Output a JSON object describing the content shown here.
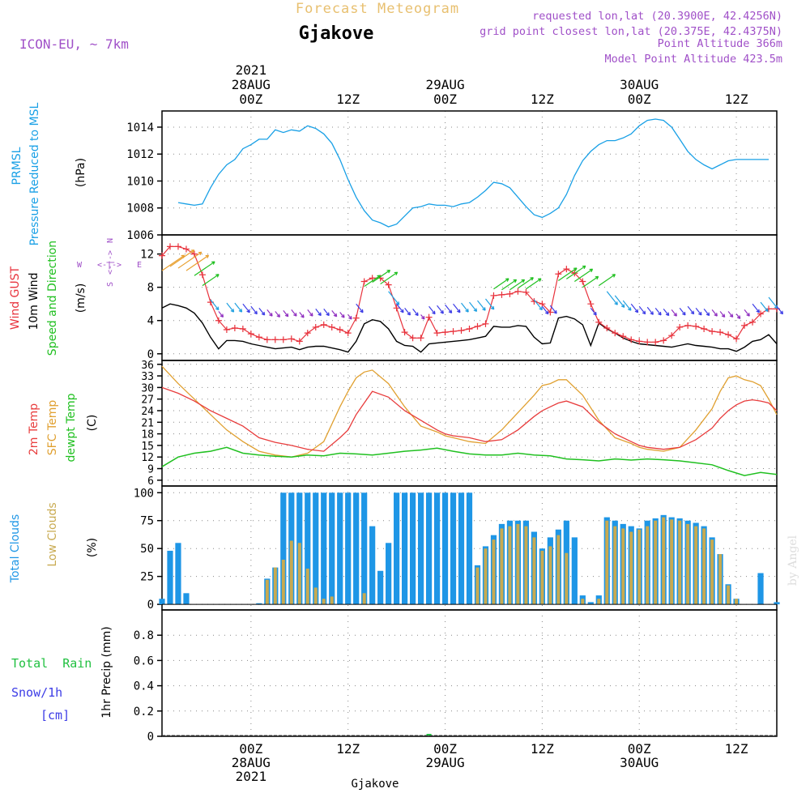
{
  "header": {
    "product": "Forecast Meteogram",
    "location": "Gjakove",
    "model": "ICON-EU, ~ 7km",
    "requested": "requested lon,lat (20.3900E, 42.4256N)",
    "grid_point": "grid point closest lon,lat (20.375E, 42.4375N)",
    "point_altitude": "Point Altitude 366m",
    "model_altitude": "Model Point Altitude 423.5m",
    "footer_location": "Gjakove",
    "credit": "by Angel"
  },
  "time_axis": {
    "top_labels": [
      {
        "lines": [
          "2021",
          "28AUG",
          "00Z"
        ],
        "hour": 0
      },
      {
        "lines": [
          "12Z"
        ],
        "hour": 12
      },
      {
        "lines": [
          "29AUG",
          "00Z"
        ],
        "hour": 24
      },
      {
        "lines": [
          "12Z"
        ],
        "hour": 36
      },
      {
        "lines": [
          "30AUG",
          "00Z"
        ],
        "hour": 48
      },
      {
        "lines": [
          "12Z"
        ],
        "hour": 60
      }
    ],
    "bottom_labels": [
      {
        "lines": [
          "00Z",
          "28AUG",
          "2021"
        ],
        "hour": 0
      },
      {
        "lines": [
          "12Z"
        ],
        "hour": 12
      },
      {
        "lines": [
          "00Z",
          "29AUG"
        ],
        "hour": 24
      },
      {
        "lines": [
          "12Z"
        ],
        "hour": 36
      },
      {
        "lines": [
          "00Z",
          "30AUG"
        ],
        "hour": 48
      },
      {
        "lines": [
          "12Z"
        ],
        "hour": 60
      }
    ],
    "range_hours": [
      -11,
      65
    ]
  },
  "panels": {
    "pressure": {
      "label1": "PRMSL",
      "label2": "Pressure Reduced to MSL",
      "unit": "(hPa)",
      "ticks": [
        1006,
        1008,
        1010,
        1012,
        1014
      ],
      "ylim": [
        1006,
        1015.2
      ]
    },
    "wind": {
      "label_gust": "Wind GUST",
      "label_wind": "10m Wind",
      "label_dir": "Speed and Direction",
      "unit": "(m/s)",
      "ticks": [
        0,
        4,
        8,
        12
      ],
      "ylim": [
        -0.8,
        14.3
      ],
      "compass": {
        "n": "N",
        "s": "S",
        "w": "W",
        "e": "E",
        "arrow_lr": "<-|->"
      }
    },
    "temp": {
      "label_t2m": "2m Temp",
      "label_sfc": "SFC Temp",
      "label_dew": "dewpt Temp",
      "unit": "(C)",
      "ticks": [
        6,
        9,
        12,
        15,
        18,
        21,
        24,
        27,
        30,
        33,
        36
      ],
      "ylim": [
        4.5,
        37
      ]
    },
    "clouds": {
      "label_total": "Total Clouds",
      "label_low": "Low Clouds",
      "unit": "(%)",
      "ticks": [
        0,
        25,
        50,
        75,
        100
      ],
      "ylim": [
        -5,
        106
      ]
    },
    "precip": {
      "label_rain": "Total  Rain",
      "label_snow": "Snow/1h",
      "label_cm": "[cm]",
      "unit": "1hr Precip (mm)",
      "ticks": [
        "0",
        "0.2",
        "0.4",
        "0.6",
        "0.8"
      ],
      "ylim": [
        0,
        1.0
      ]
    }
  },
  "colors": {
    "pressure": "#19a0e6",
    "gust": "#e8323c",
    "wind": "#000000",
    "t2m": "#e83c3c",
    "sfc": "#e0a030",
    "dew": "#20c020",
    "total_clouds": "#1e96e6",
    "low_clouds": "#c8aa50",
    "rain": "#20c040",
    "snow": "#3c3ce6",
    "header": "#a050c8",
    "title_faint": "#e8c070"
  },
  "chart_data": {
    "type": "line",
    "x_unit": "hours from 2021-08-28 00Z",
    "pressure_hpa": {
      "x": [
        -9,
        -8,
        -7,
        -6,
        -5,
        -4,
        -3,
        -2,
        -1,
        0,
        1,
        2,
        3,
        4,
        5,
        6,
        7,
        8,
        9,
        10,
        11,
        12,
        13,
        14,
        15,
        16,
        17,
        18,
        19,
        20,
        21,
        22,
        23,
        24,
        25,
        26,
        27,
        28,
        29,
        30,
        31,
        32,
        33,
        34,
        35,
        36,
        37,
        38,
        39,
        40,
        41,
        42,
        43,
        44,
        45,
        46,
        47,
        48,
        49,
        50,
        51,
        52,
        53,
        54,
        55,
        56,
        57,
        58,
        59,
        60,
        61,
        62,
        63,
        64
      ],
      "y": [
        1008.4,
        1008.3,
        1008.2,
        1008.3,
        1009.5,
        1010.5,
        1011.2,
        1011.6,
        1012.4,
        1012.7,
        1013.1,
        1013.1,
        1013.8,
        1013.6,
        1013.8,
        1013.7,
        1014.1,
        1013.9,
        1013.5,
        1012.8,
        1011.6,
        1010.1,
        1008.8,
        1007.8,
        1007.1,
        1006.9,
        1006.6,
        1006.8,
        1007.4,
        1008.0,
        1008.1,
        1008.3,
        1008.2,
        1008.2,
        1008.1,
        1008.3,
        1008.4,
        1008.8,
        1009.3,
        1009.9,
        1009.8,
        1009.5,
        1008.8,
        1008.1,
        1007.5,
        1007.3,
        1007.6,
        1008.0,
        1009.0,
        1010.4,
        1011.5,
        1012.2,
        1012.7,
        1013.0,
        1013.0,
        1013.2,
        1013.5,
        1014.1,
        1014.5,
        1014.6,
        1014.5,
        1014.0,
        1013.1,
        1012.2,
        1011.6,
        1011.2,
        1010.9,
        1011.2,
        1011.5,
        1011.6,
        1011.6,
        1011.6,
        1011.6,
        1011.6
      ]
    },
    "gust_ms": {
      "x": [
        -11,
        -10,
        -9,
        -8,
        -7,
        -6,
        -5,
        -4,
        -3,
        -2,
        -1,
        0,
        1,
        2,
        3,
        4,
        5,
        6,
        7,
        8,
        9,
        10,
        11,
        12,
        13,
        14,
        15,
        16,
        17,
        18,
        19,
        20,
        21,
        22,
        23,
        24,
        25,
        26,
        27,
        28,
        29,
        30,
        31,
        32,
        33,
        34,
        35,
        36,
        37,
        38,
        39,
        40,
        41,
        42,
        43,
        44,
        45,
        46,
        47,
        48,
        49,
        50,
        51,
        52,
        53,
        54,
        55,
        56,
        57,
        58,
        59,
        60,
        61,
        62,
        63,
        64,
        65
      ],
      "y": [
        11.8,
        12.9,
        12.9,
        12.6,
        12.0,
        9.5,
        6.2,
        4.0,
        2.9,
        3.1,
        3.0,
        2.4,
        2.0,
        1.7,
        1.7,
        1.7,
        1.8,
        1.5,
        2.5,
        3.2,
        3.5,
        3.2,
        2.9,
        2.5,
        4.3,
        8.7,
        9.1,
        9.1,
        8.3,
        5.5,
        2.6,
        1.9,
        1.9,
        4.4,
        2.5,
        2.6,
        2.7,
        2.8,
        3.0,
        3.3,
        3.6,
        7.0,
        7.1,
        7.2,
        7.5,
        7.4,
        6.3,
        6.0,
        5.0,
        9.6,
        10.2,
        9.7,
        8.7,
        6.0,
        3.8,
        3.1,
        2.5,
        2.1,
        1.7,
        1.5,
        1.4,
        1.4,
        1.6,
        2.2,
        3.2,
        3.4,
        3.3,
        3.0,
        2.7,
        2.6,
        2.3,
        1.8,
        3.4,
        3.8,
        4.8,
        5.4,
        5.4
      ]
    },
    "wind_ms": {
      "x": [
        -11,
        -10,
        -9,
        -8,
        -7,
        -6,
        -5,
        -4,
        -3,
        -2,
        -1,
        0,
        1,
        2,
        3,
        4,
        5,
        6,
        7,
        8,
        9,
        10,
        11,
        12,
        13,
        14,
        15,
        16,
        17,
        18,
        19,
        20,
        21,
        22,
        23,
        24,
        25,
        26,
        27,
        28,
        29,
        30,
        31,
        32,
        33,
        34,
        35,
        36,
        37,
        38,
        39,
        40,
        41,
        42,
        43,
        44,
        45,
        46,
        47,
        48,
        49,
        50,
        51,
        52,
        53,
        54,
        55,
        56,
        57,
        58,
        59,
        60,
        61,
        62,
        63,
        64,
        65
      ],
      "y": [
        5.5,
        6.0,
        5.8,
        5.5,
        4.9,
        3.7,
        2.0,
        0.6,
        1.6,
        1.6,
        1.5,
        1.2,
        1.0,
        0.8,
        0.6,
        0.7,
        0.8,
        0.5,
        0.8,
        0.9,
        0.9,
        0.7,
        0.5,
        0.2,
        1.5,
        3.6,
        4.1,
        3.9,
        3.0,
        1.5,
        1.0,
        0.9,
        0.2,
        1.2,
        1.3,
        1.4,
        1.5,
        1.6,
        1.7,
        1.9,
        2.1,
        3.3,
        3.2,
        3.2,
        3.4,
        3.3,
        2.0,
        1.2,
        1.3,
        4.3,
        4.5,
        4.2,
        3.5,
        1.0,
        3.7,
        3.0,
        2.5,
        1.9,
        1.5,
        1.2,
        1.1,
        1.0,
        0.9,
        0.8,
        1.0,
        1.2,
        1.0,
        0.9,
        0.8,
        0.6,
        0.6,
        0.3,
        0.8,
        1.5,
        1.7,
        2.3,
        1.2
      ]
    },
    "t2m_c": {
      "x": [
        -11,
        -9,
        -7,
        -5,
        -3,
        -1,
        1,
        3,
        5,
        7,
        9,
        11,
        12,
        13,
        14,
        15,
        17,
        19,
        21,
        23,
        24,
        25,
        27,
        29,
        31,
        33,
        35,
        36,
        37,
        38,
        39,
        41,
        43,
        45,
        47,
        48,
        49,
        51,
        53,
        55,
        57,
        58,
        59,
        60,
        61,
        62,
        63,
        64,
        65
      ],
      "y": [
        30.0,
        28.5,
        26.5,
        24.0,
        22.0,
        20.0,
        17.0,
        15.8,
        15.0,
        14.0,
        13.5,
        17.0,
        19.0,
        23.0,
        26.0,
        29.0,
        27.5,
        24.0,
        21.5,
        19.0,
        18.0,
        17.5,
        17.0,
        16.0,
        16.5,
        19.0,
        22.5,
        24.0,
        25.0,
        26.0,
        26.5,
        25.0,
        21.0,
        18.0,
        16.0,
        15.0,
        14.5,
        14.0,
        14.5,
        16.5,
        19.5,
        22.0,
        24.0,
        25.5,
        26.5,
        26.8,
        26.5,
        26.0,
        24.0
      ]
    },
    "sfc_c": {
      "x": [
        -11,
        -9,
        -7,
        -5,
        -3,
        -1,
        1,
        3,
        5,
        7,
        9,
        11,
        12,
        13,
        14,
        15,
        17,
        19,
        21,
        23,
        24,
        25,
        27,
        29,
        31,
        33,
        35,
        36,
        37,
        38,
        39,
        41,
        43,
        45,
        47,
        48,
        49,
        51,
        53,
        55,
        57,
        58,
        59,
        60,
        61,
        62,
        63,
        64,
        65
      ],
      "y": [
        35.5,
        31.0,
        27.0,
        23.0,
        19.0,
        16.0,
        13.5,
        12.5,
        12.0,
        13.0,
        16.0,
        25.0,
        29.0,
        32.5,
        34.0,
        34.5,
        31.0,
        25.0,
        20.0,
        18.5,
        17.5,
        17.0,
        16.0,
        15.5,
        19.0,
        23.5,
        28.0,
        30.5,
        31.0,
        32.0,
        32.0,
        28.0,
        21.5,
        17.0,
        15.5,
        14.5,
        14.0,
        13.5,
        14.5,
        19.0,
        24.5,
        29.0,
        32.5,
        33.0,
        32.0,
        31.5,
        30.5,
        27.0,
        23.0
      ]
    },
    "dewpt_c": {
      "x": [
        -11,
        -9,
        -7,
        -5,
        -3,
        -1,
        1,
        3,
        5,
        7,
        9,
        11,
        13,
        15,
        17,
        19,
        21,
        23,
        25,
        27,
        29,
        31,
        33,
        35,
        37,
        39,
        41,
        43,
        45,
        47,
        49,
        51,
        53,
        55,
        57,
        59,
        61,
        63,
        65
      ],
      "y": [
        9.5,
        12.0,
        13.0,
        13.5,
        14.5,
        13.0,
        12.5,
        12.2,
        12.0,
        12.5,
        12.3,
        13.0,
        12.8,
        12.5,
        13.0,
        13.5,
        13.8,
        14.3,
        13.5,
        12.8,
        12.5,
        12.5,
        13.0,
        12.5,
        12.3,
        11.5,
        11.3,
        11.0,
        11.5,
        11.2,
        11.5,
        11.3,
        11.0,
        10.5,
        10.0,
        8.5,
        7.2,
        8.0,
        7.5
      ]
    },
    "total_clouds_pct": {
      "x": [
        -11,
        -10,
        -9,
        -8,
        -7,
        -6,
        -5,
        -4,
        -3,
        -2,
        -1,
        0,
        1,
        2,
        3,
        4,
        5,
        6,
        7,
        8,
        9,
        10,
        11,
        12,
        13,
        14,
        15,
        16,
        17,
        18,
        19,
        20,
        21,
        22,
        23,
        24,
        25,
        26,
        27,
        28,
        29,
        30,
        31,
        32,
        33,
        34,
        35,
        36,
        37,
        38,
        39,
        40,
        41,
        42,
        43,
        44,
        45,
        46,
        47,
        48,
        49,
        50,
        51,
        52,
        53,
        54,
        55,
        56,
        57,
        58,
        59,
        60,
        61,
        62,
        63,
        64,
        65
      ],
      "y": [
        5,
        48,
        55,
        10,
        0,
        0,
        0,
        0,
        0,
        0,
        0,
        0,
        1,
        23,
        33,
        100,
        100,
        100,
        100,
        100,
        100,
        100,
        100,
        100,
        100,
        100,
        70,
        30,
        55,
        100,
        100,
        100,
        100,
        100,
        100,
        100,
        100,
        100,
        100,
        35,
        52,
        62,
        72,
        75,
        75,
        75,
        65,
        50,
        60,
        67,
        75,
        60,
        8,
        2,
        8,
        78,
        75,
        72,
        70,
        68,
        75,
        77,
        80,
        78,
        77,
        75,
        73,
        70,
        60,
        45,
        18,
        5,
        0,
        0,
        28,
        0,
        2
      ]
    },
    "low_clouds_pct": {
      "x": [
        -11,
        -10,
        -9,
        -8,
        -7,
        -6,
        -5,
        -4,
        -3,
        -2,
        -1,
        0,
        1,
        2,
        3,
        4,
        5,
        6,
        7,
        8,
        9,
        10,
        11,
        12,
        13,
        14,
        15,
        16,
        17,
        18,
        19,
        20,
        21,
        22,
        23,
        24,
        25,
        26,
        27,
        28,
        29,
        30,
        31,
        32,
        33,
        34,
        35,
        36,
        37,
        38,
        39,
        40,
        41,
        42,
        43,
        44,
        45,
        46,
        47,
        48,
        49,
        50,
        51,
        52,
        53,
        54,
        55,
        56,
        57,
        58,
        59,
        60,
        61,
        62,
        63,
        64,
        65
      ],
      "y": [
        0,
        0,
        0,
        0,
        0,
        0,
        0,
        0,
        0,
        0,
        0,
        0,
        0,
        22,
        33,
        40,
        57,
        55,
        32,
        15,
        5,
        7,
        0,
        0,
        0,
        10,
        0,
        0,
        0,
        0,
        0,
        0,
        0,
        0,
        0,
        0,
        0,
        0,
        0,
        33,
        50,
        58,
        68,
        70,
        72,
        70,
        60,
        48,
        52,
        62,
        46,
        0,
        5,
        0,
        5,
        75,
        70,
        68,
        65,
        67,
        70,
        75,
        78,
        76,
        75,
        72,
        70,
        68,
        58,
        45,
        17,
        5,
        0,
        0,
        0,
        0,
        0
      ]
    },
    "wind_direction_hint": "arrows along 10m wind, colored by speed"
  }
}
